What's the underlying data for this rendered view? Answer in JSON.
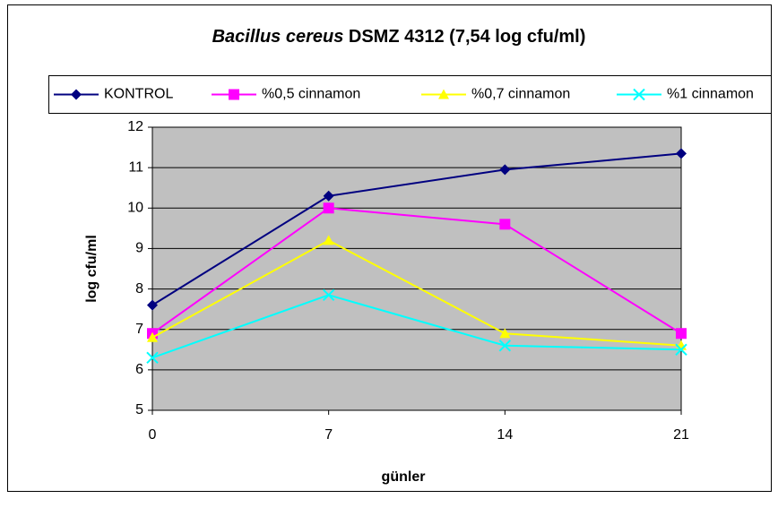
{
  "chart_data": {
    "type": "line",
    "title_parts": [
      "Bacillus cereus",
      "DSMZ 4312 (7,54 log cfu/ml)"
    ],
    "xlabel": "günler",
    "ylabel": "log cfu/ml",
    "x": [
      0,
      7,
      14,
      21
    ],
    "xlim": [
      0,
      21
    ],
    "xticks": [
      0,
      7,
      14,
      21
    ],
    "ylim": [
      5,
      12
    ],
    "yticks": [
      5,
      6,
      7,
      8,
      9,
      10,
      11,
      12
    ],
    "grid": true,
    "legend": "top",
    "series": [
      {
        "name": "KONTROL",
        "color": "#000080",
        "marker": "diamond",
        "values": [
          7.6,
          10.3,
          10.95,
          11.35
        ]
      },
      {
        "name": "%0,5 cinnamon",
        "color": "#ff00ff",
        "marker": "square",
        "values": [
          6.9,
          10.0,
          9.6,
          6.9
        ]
      },
      {
        "name": "%0,7 cinnamon",
        "color": "#ffff00",
        "marker": "triangle",
        "values": [
          6.8,
          9.2,
          6.9,
          6.6
        ]
      },
      {
        "name": "%1 cinnamon",
        "color": "#00ffff",
        "marker": "x",
        "values": [
          6.3,
          7.85,
          6.6,
          6.5
        ]
      }
    ]
  }
}
